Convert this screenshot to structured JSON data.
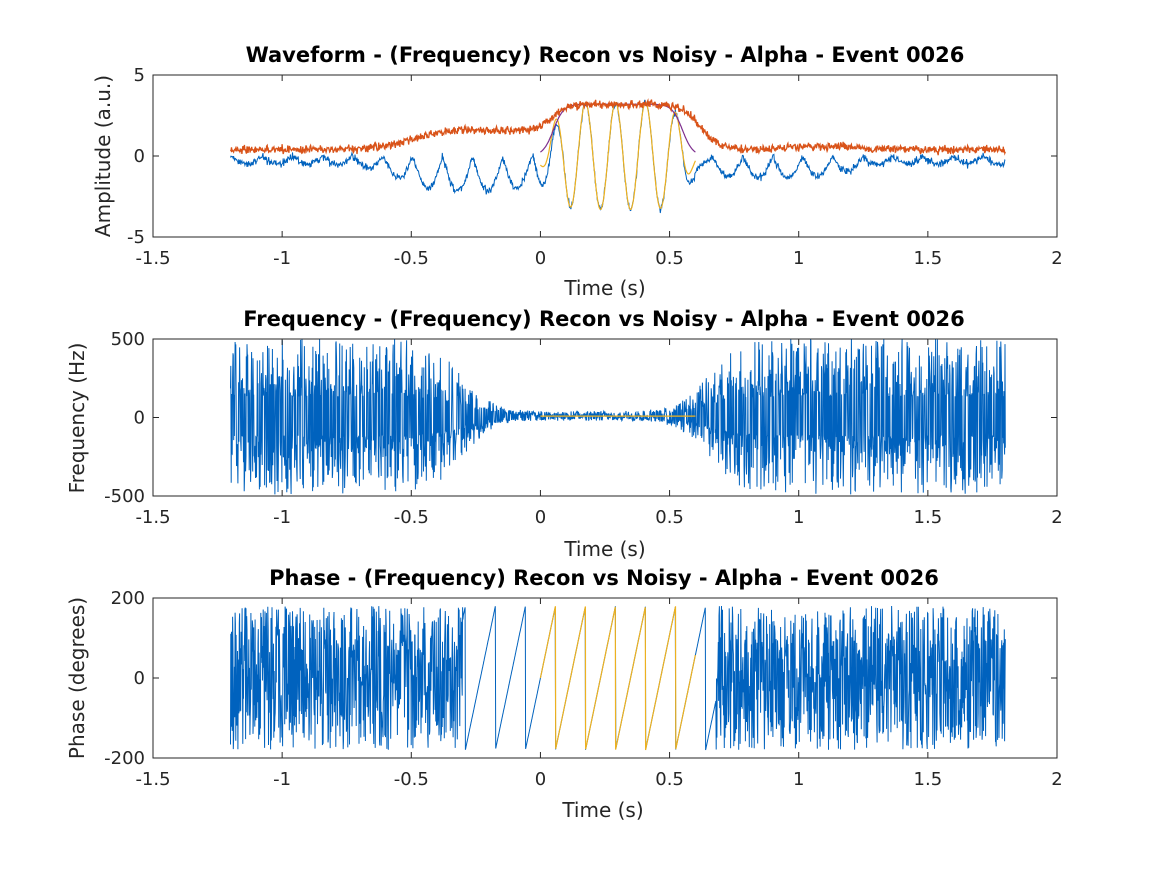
{
  "colors": {
    "noisy": "#0062BE",
    "envelope": "#D95319",
    "recon": "#EDB120",
    "recon_env": "#7E2F8E",
    "axis": "#262626"
  },
  "chart_data": [
    {
      "type": "line",
      "title": "Waveform - (Frequency) Recon vs Noisy - Alpha - Event 0026",
      "xlabel": "Time (s)",
      "ylabel": "Amplitude (a.u.)",
      "xlim": [
        -1.5,
        2
      ],
      "ylim": [
        -5,
        5
      ],
      "xticks": [
        -1.5,
        -1,
        -0.5,
        0,
        0.5,
        1,
        1.5,
        2
      ],
      "xtick_labels": [
        "-1.5",
        "-1",
        "-0.5",
        "0",
        "0.5",
        "1",
        "1.5",
        "2"
      ],
      "yticks": [
        -5,
        0,
        5
      ],
      "ytick_labels": [
        "-5",
        "0",
        "5"
      ],
      "grid": false,
      "series": [
        {
          "role": "noisy waveform",
          "x_range": [
            -1.2,
            1.8
          ],
          "approx_baseline": 0,
          "burst_window": [
            0,
            0.6
          ],
          "burst_amplitude": 3.3,
          "burst_frequency_hz": 8.6
        },
        {
          "role": "noisy envelope",
          "x_range": [
            -1.2,
            1.8
          ],
          "baseline": 0.4,
          "plateau": 3.2,
          "plateau_window": [
            0.1,
            0.55
          ]
        },
        {
          "role": "reconstructed waveform",
          "x_range": [
            0,
            0.6
          ],
          "amplitude": 3.3,
          "frequency_hz": 8.6
        },
        {
          "role": "reconstructed envelope",
          "x_range": [
            0,
            0.6
          ],
          "plateau": 3.2
        }
      ]
    },
    {
      "type": "line",
      "title": "Frequency - (Frequency) Recon vs Noisy - Alpha - Event 0026",
      "xlabel": "Time (s)",
      "ylabel": "Frequency (Hz)",
      "xlim": [
        -1.5,
        2
      ],
      "ylim": [
        -500,
        500
      ],
      "xticks": [
        -1.5,
        -1,
        -0.5,
        0,
        0.5,
        1,
        1.5,
        2
      ],
      "xtick_labels": [
        "-1.5",
        "-1",
        "-0.5",
        "0",
        "0.5",
        "1",
        "1.5",
        "2"
      ],
      "yticks": [
        -500,
        0,
        500
      ],
      "ytick_labels": [
        "-500",
        "0",
        "500"
      ],
      "grid": false,
      "series": [
        {
          "role": "noisy instantaneous frequency",
          "x_range": [
            -1.2,
            1.8
          ],
          "quiet_window": [
            -0.3,
            0.65
          ],
          "quiet_amplitude": 30,
          "noisy_amplitude": 500
        },
        {
          "role": "reconstructed frequency",
          "x_range": [
            0,
            0.6
          ],
          "value": 9
        }
      ]
    },
    {
      "type": "line",
      "title": "Phase - (Frequency) Recon vs Noisy - Alpha - Event 0026",
      "xlabel": "Time (s)",
      "ylabel": "Phase (degrees)",
      "xlim": [
        -1.5,
        2
      ],
      "ylim": [
        -200,
        200
      ],
      "xticks": [
        -1.5,
        -1,
        -0.5,
        0,
        0.5,
        1,
        1.5,
        2
      ],
      "xtick_labels": [
        "-1.5",
        "-1",
        "-0.5",
        "0",
        "0.5",
        "1",
        "1.5",
        "2"
      ],
      "yticks": [
        -200,
        0,
        200
      ],
      "ytick_labels": [
        "-200",
        "0",
        "200"
      ],
      "grid": false,
      "series": [
        {
          "role": "noisy phase",
          "x_range": [
            -1.2,
            1.8
          ],
          "wrap_range": [
            -180,
            180
          ]
        },
        {
          "role": "reconstructed phase",
          "x_range": [
            0,
            0.6
          ],
          "wrap_range": [
            -180,
            180
          ],
          "frequency_hz": 8.6
        }
      ]
    }
  ]
}
